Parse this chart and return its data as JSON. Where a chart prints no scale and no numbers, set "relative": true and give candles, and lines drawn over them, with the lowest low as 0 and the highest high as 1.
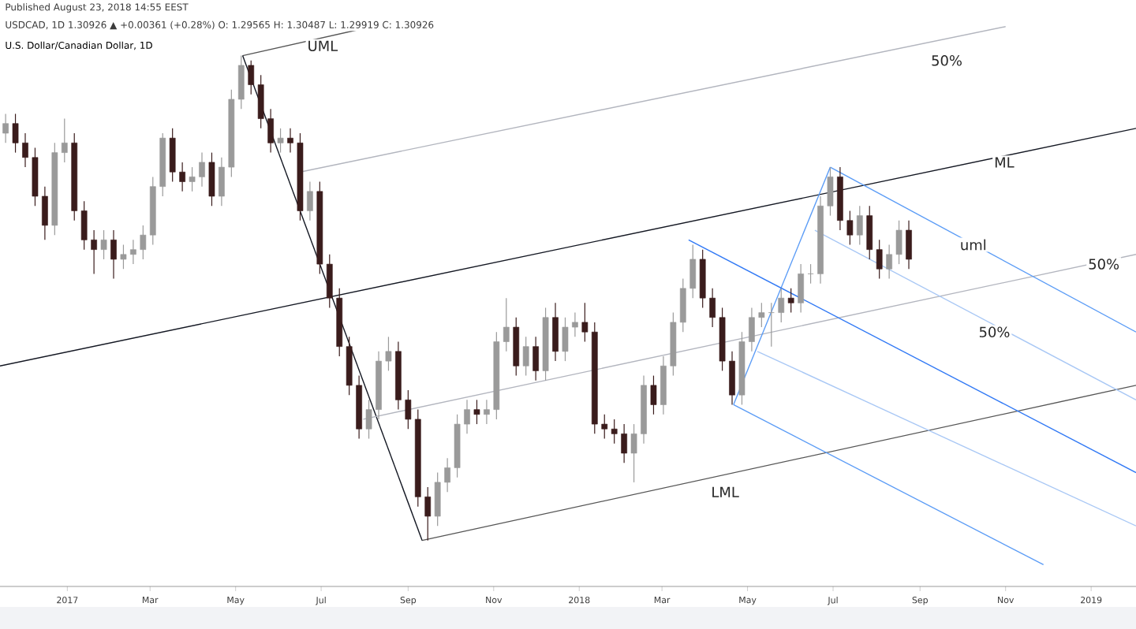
{
  "chart_data": {
    "type": "candlestick",
    "relative": true,
    "title": "U.S. Dollar/Canadian Dollar, 1D",
    "annotations": [
      "Published August 23, 2018 14:55 EEST",
      "USDCAD, 1D 1.30926 ▲ +0.00361 (+0.28%) O: 1.29565 H: 1.30487 L: 1.29919 C: 1.30926",
      {
        "text": "UML",
        "x": "2017-07-02",
        "y": 1.02
      },
      {
        "text": "50%",
        "x": "2018-09-20",
        "y": 0.99
      },
      {
        "text": "ML",
        "x": "2018-10-31",
        "y": 0.78
      },
      {
        "text": "uml",
        "x": "2018-10-09",
        "y": 0.61
      },
      {
        "text": "50%",
        "x": "2019-01-10",
        "y": 0.57
      },
      {
        "text": "50%",
        "x": "2018-10-24",
        "y": 0.43
      },
      {
        "text": "LML",
        "x": "2018-04-15",
        "y": 0.1
      }
    ],
    "x": [
      "2016-11-18",
      "2016-11-25",
      "2016-12-02",
      "2016-12-09",
      "2016-12-16",
      "2016-12-23",
      "2016-12-30",
      "2017-01-06",
      "2017-01-13",
      "2017-01-20",
      "2017-01-27",
      "2017-02-03",
      "2017-02-10",
      "2017-02-17",
      "2017-02-24",
      "2017-03-03",
      "2017-03-10",
      "2017-03-17",
      "2017-03-24",
      "2017-03-31",
      "2017-04-07",
      "2017-04-14",
      "2017-04-21",
      "2017-04-28",
      "2017-05-05",
      "2017-05-12",
      "2017-05-19",
      "2017-05-26",
      "2017-06-02",
      "2017-06-09",
      "2017-06-16",
      "2017-06-23",
      "2017-06-30",
      "2017-07-07",
      "2017-07-14",
      "2017-07-21",
      "2017-07-28",
      "2017-08-04",
      "2017-08-11",
      "2017-08-18",
      "2017-08-25",
      "2017-09-01",
      "2017-09-08",
      "2017-09-15",
      "2017-09-22",
      "2017-09-29",
      "2017-10-06",
      "2017-10-13",
      "2017-10-20",
      "2017-10-27",
      "2017-11-03",
      "2017-11-10",
      "2017-11-17",
      "2017-11-24",
      "2017-12-01",
      "2017-12-08",
      "2017-12-15",
      "2017-12-22",
      "2017-12-29",
      "2018-01-05",
      "2018-01-12",
      "2018-01-19",
      "2018-01-26",
      "2018-02-02",
      "2018-02-09",
      "2018-02-16",
      "2018-02-23",
      "2018-03-02",
      "2018-03-09",
      "2018-03-16",
      "2018-03-23",
      "2018-03-30",
      "2018-04-06",
      "2018-04-13",
      "2018-04-20",
      "2018-04-27",
      "2018-05-04",
      "2018-05-11",
      "2018-05-18",
      "2018-05-25",
      "2018-06-01",
      "2018-06-08",
      "2018-06-15",
      "2018-06-22",
      "2018-06-29",
      "2018-07-06",
      "2018-07-13",
      "2018-07-20",
      "2018-07-27",
      "2018-08-03",
      "2018-08-10",
      "2018-08-17",
      "2018-08-24"
    ],
    "ohlc": [
      [
        0.84,
        0.88,
        0.82,
        0.86
      ],
      [
        0.86,
        0.88,
        0.8,
        0.82
      ],
      [
        0.82,
        0.84,
        0.77,
        0.79
      ],
      [
        0.79,
        0.81,
        0.69,
        0.71
      ],
      [
        0.71,
        0.73,
        0.62,
        0.65
      ],
      [
        0.65,
        0.82,
        0.63,
        0.8
      ],
      [
        0.8,
        0.87,
        0.78,
        0.82
      ],
      [
        0.82,
        0.84,
        0.66,
        0.68
      ],
      [
        0.68,
        0.7,
        0.6,
        0.62
      ],
      [
        0.62,
        0.64,
        0.55,
        0.6
      ],
      [
        0.6,
        0.64,
        0.58,
        0.62
      ],
      [
        0.62,
        0.64,
        0.54,
        0.58
      ],
      [
        0.58,
        0.61,
        0.56,
        0.59
      ],
      [
        0.59,
        0.62,
        0.57,
        0.6
      ],
      [
        0.6,
        0.65,
        0.58,
        0.63
      ],
      [
        0.63,
        0.75,
        0.61,
        0.73
      ],
      [
        0.73,
        0.84,
        0.71,
        0.83
      ],
      [
        0.83,
        0.85,
        0.74,
        0.76
      ],
      [
        0.76,
        0.78,
        0.72,
        0.74
      ],
      [
        0.74,
        0.77,
        0.72,
        0.75
      ],
      [
        0.75,
        0.8,
        0.73,
        0.78
      ],
      [
        0.78,
        0.8,
        0.69,
        0.71
      ],
      [
        0.71,
        0.79,
        0.69,
        0.77
      ],
      [
        0.77,
        0.93,
        0.75,
        0.91
      ],
      [
        0.91,
        1.0,
        0.89,
        0.98
      ],
      [
        0.98,
        0.99,
        0.92,
        0.94
      ],
      [
        0.94,
        0.96,
        0.85,
        0.87
      ],
      [
        0.87,
        0.89,
        0.8,
        0.82
      ],
      [
        0.82,
        0.85,
        0.8,
        0.83
      ],
      [
        0.83,
        0.85,
        0.8,
        0.82
      ],
      [
        0.82,
        0.84,
        0.66,
        0.68
      ],
      [
        0.68,
        0.74,
        0.66,
        0.72
      ],
      [
        0.72,
        0.74,
        0.55,
        0.57
      ],
      [
        0.57,
        0.59,
        0.48,
        0.5
      ],
      [
        0.5,
        0.52,
        0.38,
        0.4
      ],
      [
        0.4,
        0.42,
        0.3,
        0.32
      ],
      [
        0.32,
        0.34,
        0.21,
        0.23
      ],
      [
        0.23,
        0.29,
        0.21,
        0.27
      ],
      [
        0.27,
        0.39,
        0.25,
        0.37
      ],
      [
        0.37,
        0.42,
        0.35,
        0.39
      ],
      [
        0.39,
        0.41,
        0.27,
        0.29
      ],
      [
        0.29,
        0.31,
        0.23,
        0.25
      ],
      [
        0.25,
        0.27,
        0.07,
        0.09
      ],
      [
        0.09,
        0.11,
        0.0,
        0.05
      ],
      [
        0.05,
        0.14,
        0.03,
        0.12
      ],
      [
        0.12,
        0.17,
        0.1,
        0.15
      ],
      [
        0.15,
        0.26,
        0.13,
        0.24
      ],
      [
        0.24,
        0.29,
        0.22,
        0.27
      ],
      [
        0.27,
        0.29,
        0.24,
        0.26
      ],
      [
        0.26,
        0.29,
        0.24,
        0.27
      ],
      [
        0.27,
        0.43,
        0.25,
        0.41
      ],
      [
        0.41,
        0.5,
        0.39,
        0.44
      ],
      [
        0.44,
        0.46,
        0.34,
        0.36
      ],
      [
        0.36,
        0.42,
        0.34,
        0.4
      ],
      [
        0.4,
        0.42,
        0.33,
        0.35
      ],
      [
        0.35,
        0.48,
        0.33,
        0.46
      ],
      [
        0.46,
        0.49,
        0.37,
        0.39
      ],
      [
        0.39,
        0.46,
        0.37,
        0.44
      ],
      [
        0.44,
        0.47,
        0.42,
        0.45
      ],
      [
        0.45,
        0.49,
        0.41,
        0.43
      ],
      [
        0.43,
        0.45,
        0.22,
        0.24
      ],
      [
        0.24,
        0.26,
        0.21,
        0.23
      ],
      [
        0.23,
        0.25,
        0.2,
        0.22
      ],
      [
        0.22,
        0.24,
        0.16,
        0.18
      ],
      [
        0.18,
        0.24,
        0.12,
        0.22
      ],
      [
        0.22,
        0.34,
        0.2,
        0.32
      ],
      [
        0.32,
        0.34,
        0.26,
        0.28
      ],
      [
        0.28,
        0.38,
        0.26,
        0.36
      ],
      [
        0.36,
        0.47,
        0.34,
        0.45
      ],
      [
        0.45,
        0.54,
        0.43,
        0.52
      ],
      [
        0.52,
        0.61,
        0.5,
        0.58
      ],
      [
        0.58,
        0.6,
        0.48,
        0.5
      ],
      [
        0.5,
        0.52,
        0.44,
        0.46
      ],
      [
        0.46,
        0.48,
        0.35,
        0.37
      ],
      [
        0.37,
        0.39,
        0.28,
        0.3
      ],
      [
        0.3,
        0.43,
        0.28,
        0.41
      ],
      [
        0.41,
        0.48,
        0.39,
        0.46
      ],
      [
        0.46,
        0.49,
        0.44,
        0.47
      ],
      [
        0.47,
        0.49,
        0.4,
        0.47
      ],
      [
        0.47,
        0.52,
        0.45,
        0.5
      ],
      [
        0.5,
        0.52,
        0.47,
        0.49
      ],
      [
        0.49,
        0.57,
        0.47,
        0.55
      ],
      [
        0.55,
        0.57,
        0.53,
        0.55
      ],
      [
        0.55,
        0.71,
        0.53,
        0.69
      ],
      [
        0.69,
        0.77,
        0.67,
        0.75
      ],
      [
        0.75,
        0.77,
        0.64,
        0.66
      ],
      [
        0.66,
        0.68,
        0.61,
        0.63
      ],
      [
        0.63,
        0.69,
        0.61,
        0.67
      ],
      [
        0.67,
        0.69,
        0.58,
        0.6
      ],
      [
        0.6,
        0.62,
        0.54,
        0.56
      ],
      [
        0.56,
        0.61,
        0.54,
        0.59
      ],
      [
        0.59,
        0.66,
        0.57,
        0.64
      ],
      [
        0.64,
        0.66,
        0.56,
        0.58
      ]
    ],
    "series": [
      {
        "type": "line",
        "color": "#131722",
        "x": [
          "2016-11-14",
          "2019-02-02"
        ],
        "values": [
          0.36,
          0.85
        ]
      },
      {
        "type": "line",
        "color": "#555555",
        "x": [
          "2017-05-06",
          "2017-08-22"
        ],
        "values": [
          1.0,
          1.07
        ]
      },
      {
        "type": "line",
        "color": "#555555",
        "x": [
          "2017-09-11",
          "2019-02-02"
        ],
        "values": [
          0.0,
          0.32
        ]
      },
      {
        "type": "line",
        "color": "#131722",
        "x": [
          "2017-05-06",
          "2017-09-11"
        ],
        "values": [
          1.0,
          0.0
        ]
      },
      {
        "type": "line",
        "color": "#b2b5be",
        "x": [
          "2017-06-16",
          "2018-11-01"
        ],
        "values": [
          0.76,
          1.06
        ]
      },
      {
        "type": "line",
        "color": "#b2b5be",
        "x": [
          "2017-07-31",
          "2019-02-02"
        ],
        "values": [
          0.25,
          0.59
        ]
      },
      {
        "type": "line",
        "color": "#5b9cf6",
        "x": [
          "2018-04-21",
          "2018-06-29"
        ],
        "values": [
          0.28,
          0.77
        ]
      },
      {
        "type": "line",
        "color": "#3179f5",
        "x": [
          "2018-03-20",
          "2019-02-02"
        ],
        "values": [
          0.62,
          0.14
        ]
      },
      {
        "type": "line",
        "color": "#5b9cf6",
        "x": [
          "2018-06-29",
          "2019-02-02"
        ],
        "values": [
          0.77,
          0.43
        ]
      },
      {
        "type": "line",
        "color": "#5b9cf6",
        "x": [
          "2018-04-21",
          "2018-11-28"
        ],
        "values": [
          0.28,
          -0.05
        ]
      },
      {
        "type": "line",
        "color": "#a9c8f5",
        "x": [
          "2018-06-18",
          "2019-02-02"
        ],
        "values": [
          0.64,
          0.29
        ]
      },
      {
        "type": "line",
        "color": "#a9c8f5",
        "x": [
          "2018-05-08",
          "2019-02-02"
        ],
        "values": [
          0.39,
          0.03
        ]
      }
    ],
    "xlim": [
      "2016-11-14",
      "2019-02-02"
    ],
    "xticks": [
      {
        "value": "2017-01-01",
        "label": "2017"
      },
      {
        "value": "2017-03-01",
        "label": "Mar"
      },
      {
        "value": "2017-05-01",
        "label": "May"
      },
      {
        "value": "2017-07-01",
        "label": "Jul"
      },
      {
        "value": "2017-09-01",
        "label": "Sep"
      },
      {
        "value": "2017-11-01",
        "label": "Nov"
      },
      {
        "value": "2018-01-01",
        "label": "2018"
      },
      {
        "value": "2018-03-01",
        "label": "Mar"
      },
      {
        "value": "2018-05-01",
        "label": "May"
      },
      {
        "value": "2018-07-01",
        "label": "Jul"
      },
      {
        "value": "2018-09-01",
        "label": "Sep"
      },
      {
        "value": "2018-11-01",
        "label": "Nov"
      },
      {
        "value": "2019-01-01",
        "label": "2019"
      }
    ]
  }
}
